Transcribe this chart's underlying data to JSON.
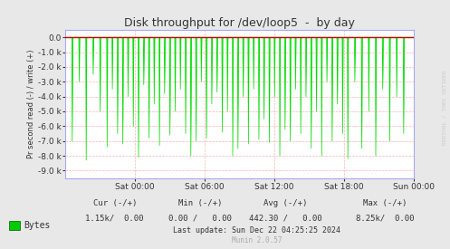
{
  "title": "Disk throughput for /dev/loop5  -  by day",
  "ylabel": "Pr second read (-) / write (+)",
  "background_color": "#e8e8e8",
  "plot_background_color": "#ffffff",
  "grid_color": "#ffaaaa",
  "ylim": [
    -9500,
    500
  ],
  "yticks": [
    0,
    -1000,
    -2000,
    -3000,
    -4000,
    -5000,
    -6000,
    -7000,
    -8000,
    -9000
  ],
  "ytick_labels": [
    "0.0",
    "-1.0 k",
    "-2.0 k",
    "-3.0 k",
    "-4.0 k",
    "-5.0 k",
    "-6.0 k",
    "-7.0 k",
    "-8.0 k",
    "-9.0 k"
  ],
  "xtick_labels": [
    "Sat 00:00",
    "Sat 06:00",
    "Sat 12:00",
    "Sat 18:00",
    "Sun 00:00"
  ],
  "line_color": "#00dd00",
  "zero_line_color": "#cc0000",
  "border_color": "#aaaaee",
  "legend_label": "Bytes",
  "legend_color": "#00cc00",
  "footer_cur": "Cur (-/+)",
  "footer_min": "Min (-/+)",
  "footer_avg": "Avg (-/+)",
  "footer_max": "Max (-/+)",
  "footer_cur_val": "1.15k/  0.00",
  "footer_min_val": "0.00 /   0.00",
  "footer_avg_val": "442.30 /   0.00",
  "footer_max_val": "8.25k/  0.00",
  "footer_last": "Last update: Sun Dec 22 04:25:25 2024",
  "footer_munin": "Munin 2.0.57",
  "watermark": "RRDTOOL / TOBI OETIKER",
  "spike_positions": [
    0.02,
    0.04,
    0.06,
    0.08,
    0.1,
    0.12,
    0.135,
    0.15,
    0.165,
    0.18,
    0.195,
    0.21,
    0.225,
    0.24,
    0.255,
    0.27,
    0.285,
    0.3,
    0.315,
    0.33,
    0.345,
    0.36,
    0.375,
    0.39,
    0.405,
    0.42,
    0.435,
    0.45,
    0.465,
    0.48,
    0.495,
    0.51,
    0.525,
    0.54,
    0.555,
    0.57,
    0.585,
    0.6,
    0.615,
    0.63,
    0.645,
    0.66,
    0.675,
    0.69,
    0.705,
    0.72,
    0.735,
    0.75,
    0.765,
    0.78,
    0.795,
    0.81,
    0.83,
    0.85,
    0.87,
    0.89,
    0.91,
    0.93,
    0.95,
    0.97
  ],
  "spike_depths": [
    -7000,
    -3000,
    -8300,
    -2500,
    -5000,
    -7400,
    -3500,
    -6500,
    -7200,
    -4000,
    -6000,
    -8100,
    -3200,
    -6800,
    -4500,
    -7300,
    -3800,
    -6600,
    -5000,
    -3500,
    -6500,
    -8000,
    -7000,
    -3000,
    -6800,
    -4500,
    -3700,
    -6400,
    -5000,
    -8000,
    -7500,
    -4000,
    -7200,
    -3500,
    -6900,
    -5500,
    -7100,
    -4000,
    -8000,
    -6200,
    -7000,
    -3500,
    -6500,
    -4000,
    -7500,
    -5000,
    -8000,
    -3000,
    -7000,
    -4500,
    -6500,
    -8200,
    -3000,
    -7500,
    -5000,
    -8000,
    -3500,
    -7000,
    -4000,
    -6500
  ]
}
